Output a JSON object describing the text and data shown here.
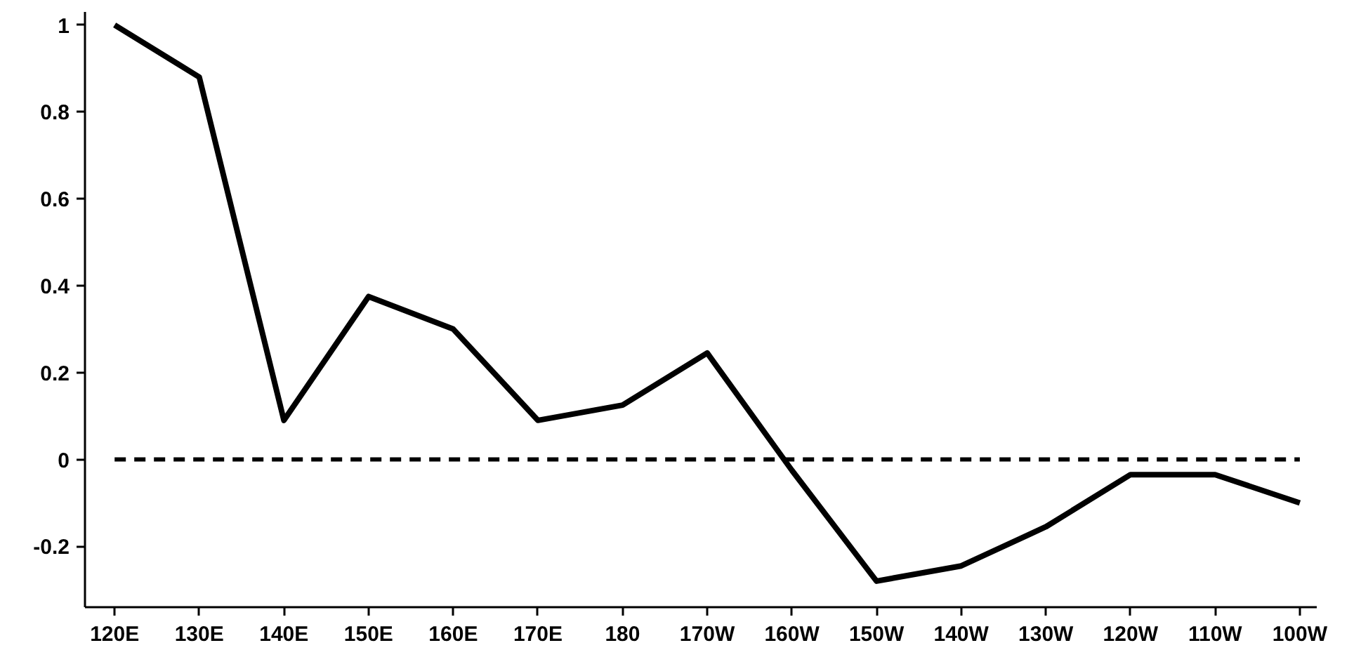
{
  "chart_data": {
    "type": "line",
    "categories": [
      "120E",
      "130E",
      "140E",
      "150E",
      "160E",
      "170E",
      "180",
      "170W",
      "160W",
      "150W",
      "140W",
      "130W",
      "120W",
      "110W",
      "100W"
    ],
    "series": [
      {
        "color": "#000000",
        "values": [
          1.0,
          0.88,
          0.09,
          0.375,
          0.3,
          0.09,
          0.125,
          0.245,
          -0.025,
          -0.28,
          -0.245,
          -0.155,
          -0.035,
          -0.035,
          -0.1
        ]
      }
    ],
    "ylim": [
      -0.34,
      1.03
    ],
    "yticks": [
      -0.2,
      0,
      0.2,
      0.4,
      0.6,
      0.8,
      1
    ],
    "grid": false,
    "marker": "none",
    "line_style": "solid",
    "ref_lines": [
      {
        "axis": "y",
        "value": 0,
        "line_style": "dashed",
        "color": "#000000"
      }
    ]
  }
}
